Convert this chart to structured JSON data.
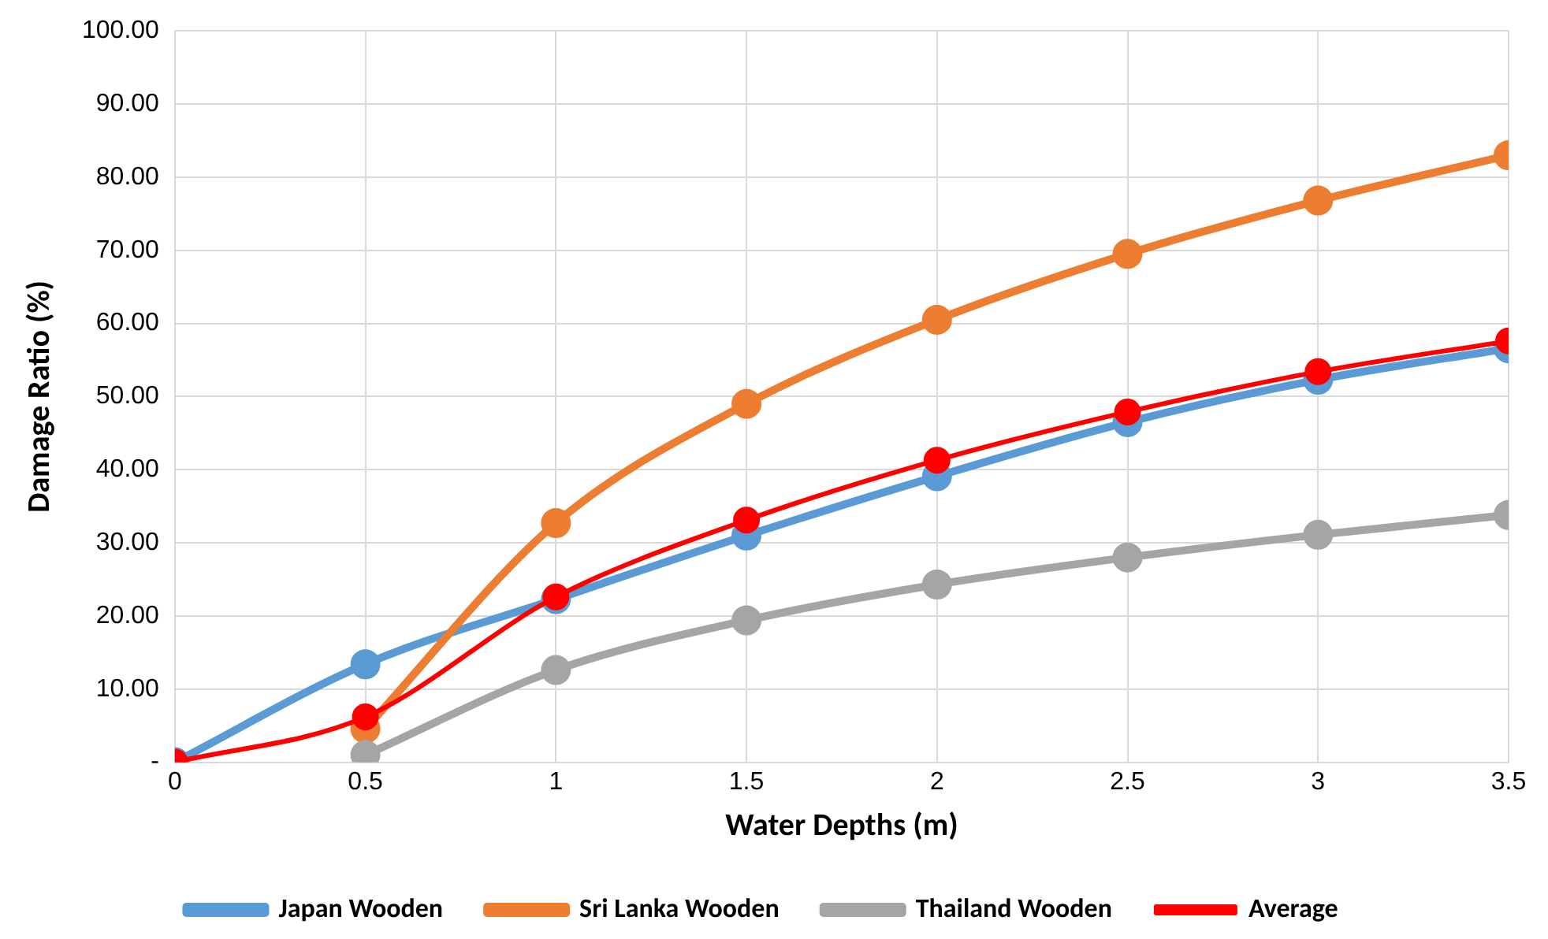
{
  "chart_data": {
    "type": "line",
    "xlabel": "Water Depths (m)",
    "ylabel": "Damage Ratio (%)",
    "xlim": [
      0,
      3.5
    ],
    "xticks": [
      0,
      0.5,
      1,
      1.5,
      2,
      2.5,
      3,
      3.5
    ],
    "ylim": [
      0,
      100
    ],
    "yticks": [
      {
        "value": 0,
        "label": "-"
      },
      {
        "value": 10,
        "label": "10.00"
      },
      {
        "value": 20,
        "label": "20.00"
      },
      {
        "value": 30,
        "label": "30.00"
      },
      {
        "value": 40,
        "label": "40.00"
      },
      {
        "value": 50,
        "label": "50.00"
      },
      {
        "value": 60,
        "label": "60.00"
      },
      {
        "value": 70,
        "label": "70.00"
      },
      {
        "value": 80,
        "label": "80.00"
      },
      {
        "value": 90,
        "label": "90.00"
      },
      {
        "value": 100,
        "label": "100.00"
      }
    ],
    "grid": true,
    "legend": "bottom",
    "marker": "circle",
    "line_style": "solid",
    "series": [
      {
        "name": "Japan Wooden",
        "color": "#5b9bd5",
        "x": [
          0,
          0.5,
          1,
          1.5,
          2,
          2.5,
          3,
          3.5
        ],
        "values": [
          0,
          13.4,
          22.3,
          31,
          39.1,
          46.5,
          52.3,
          56.6
        ]
      },
      {
        "name": "Sri Lanka Wooden",
        "color": "#ed7d31",
        "x": [
          0.5,
          1,
          1.5,
          2,
          2.5,
          3,
          3.5
        ],
        "values": [
          4.6,
          32.7,
          49,
          60.5,
          69.5,
          76.8,
          83
        ]
      },
      {
        "name": "Thailand Wooden",
        "color": "#a5a5a5",
        "x": [
          0.5,
          1,
          1.5,
          2,
          2.5,
          3,
          3.5
        ],
        "values": [
          1,
          12.6,
          19.4,
          24.3,
          28,
          31.1,
          33.8
        ]
      },
      {
        "name": "Average",
        "color": "#ff0000",
        "x": [
          0,
          0.5,
          1,
          1.5,
          2,
          2.5,
          3,
          3.5
        ],
        "values": [
          0,
          6.2,
          22.6,
          33.1,
          41.3,
          47.9,
          53.4,
          57.6
        ]
      }
    ]
  }
}
